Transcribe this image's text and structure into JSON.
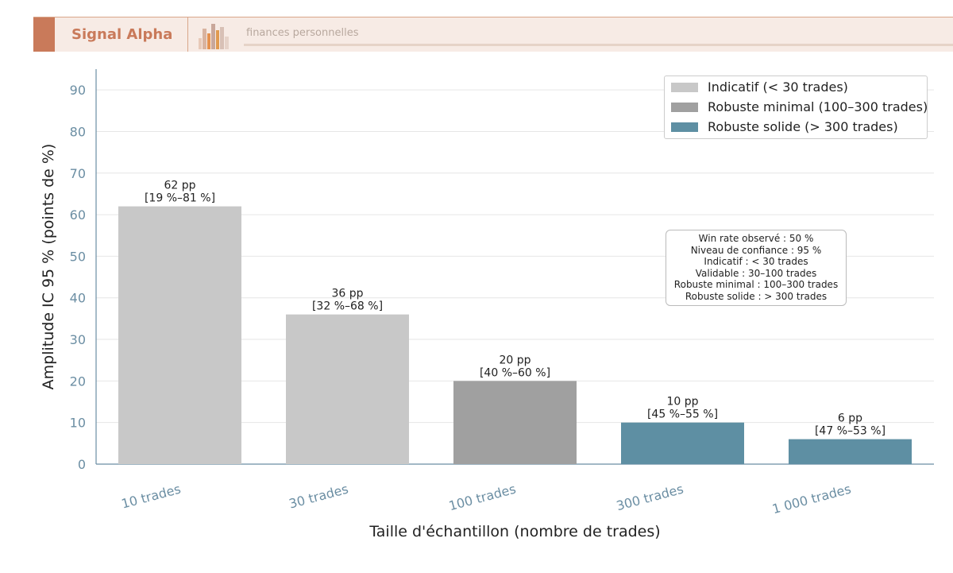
{
  "header": {
    "brand": "Signal Alpha",
    "tagline": "finances personnelles"
  },
  "colors": {
    "accent": "#c97a5a",
    "indicatif": "#c8c8c8",
    "robuste_minimal": "#a0a0a0",
    "robuste_solide": "#5e8fa3",
    "axis": "#6b8ea3"
  },
  "chart_data": {
    "type": "bar",
    "title": "",
    "xlabel": "Taille d'échantillon (nombre de trades)",
    "ylabel": "Amplitude IC 95 % (points de %)",
    "ylim": [
      0,
      95
    ],
    "yticks": [
      0,
      10,
      20,
      30,
      40,
      50,
      60,
      70,
      80,
      90
    ],
    "grid": "horizontal",
    "categories": [
      "10 trades",
      "30 trades",
      "100 trades",
      "300 trades",
      "1 000 trades"
    ],
    "values": [
      62,
      36,
      20,
      10,
      6
    ],
    "bar_groups": [
      "indicatif",
      "indicatif",
      "robuste_minimal",
      "robuste_solide",
      "robuste_solide"
    ],
    "value_labels": [
      "62 pp",
      "36 pp",
      "20 pp",
      "10 pp",
      "6 pp"
    ],
    "interval_labels": [
      "[19 %–81 %]",
      "[32 %–68 %]",
      "[40 %–60 %]",
      "[45 %–55 %]",
      "[47 %–53 %]"
    ],
    "legend_position": "top-right",
    "legend": [
      {
        "key": "indicatif",
        "label": "Indicatif (< 30 trades)"
      },
      {
        "key": "robuste_minimal",
        "label": "Robuste minimal (100–300 trades)"
      },
      {
        "key": "robuste_solide",
        "label": "Robuste solide (> 300 trades)"
      }
    ],
    "annotation": [
      "Win rate observé : 50 %",
      "Niveau de confiance : 95 %",
      "Indicatif : < 30 trades",
      "Validable : 30–100 trades",
      "Robuste minimal : 100–300 trades",
      "Robuste solide : > 300 trades"
    ]
  }
}
